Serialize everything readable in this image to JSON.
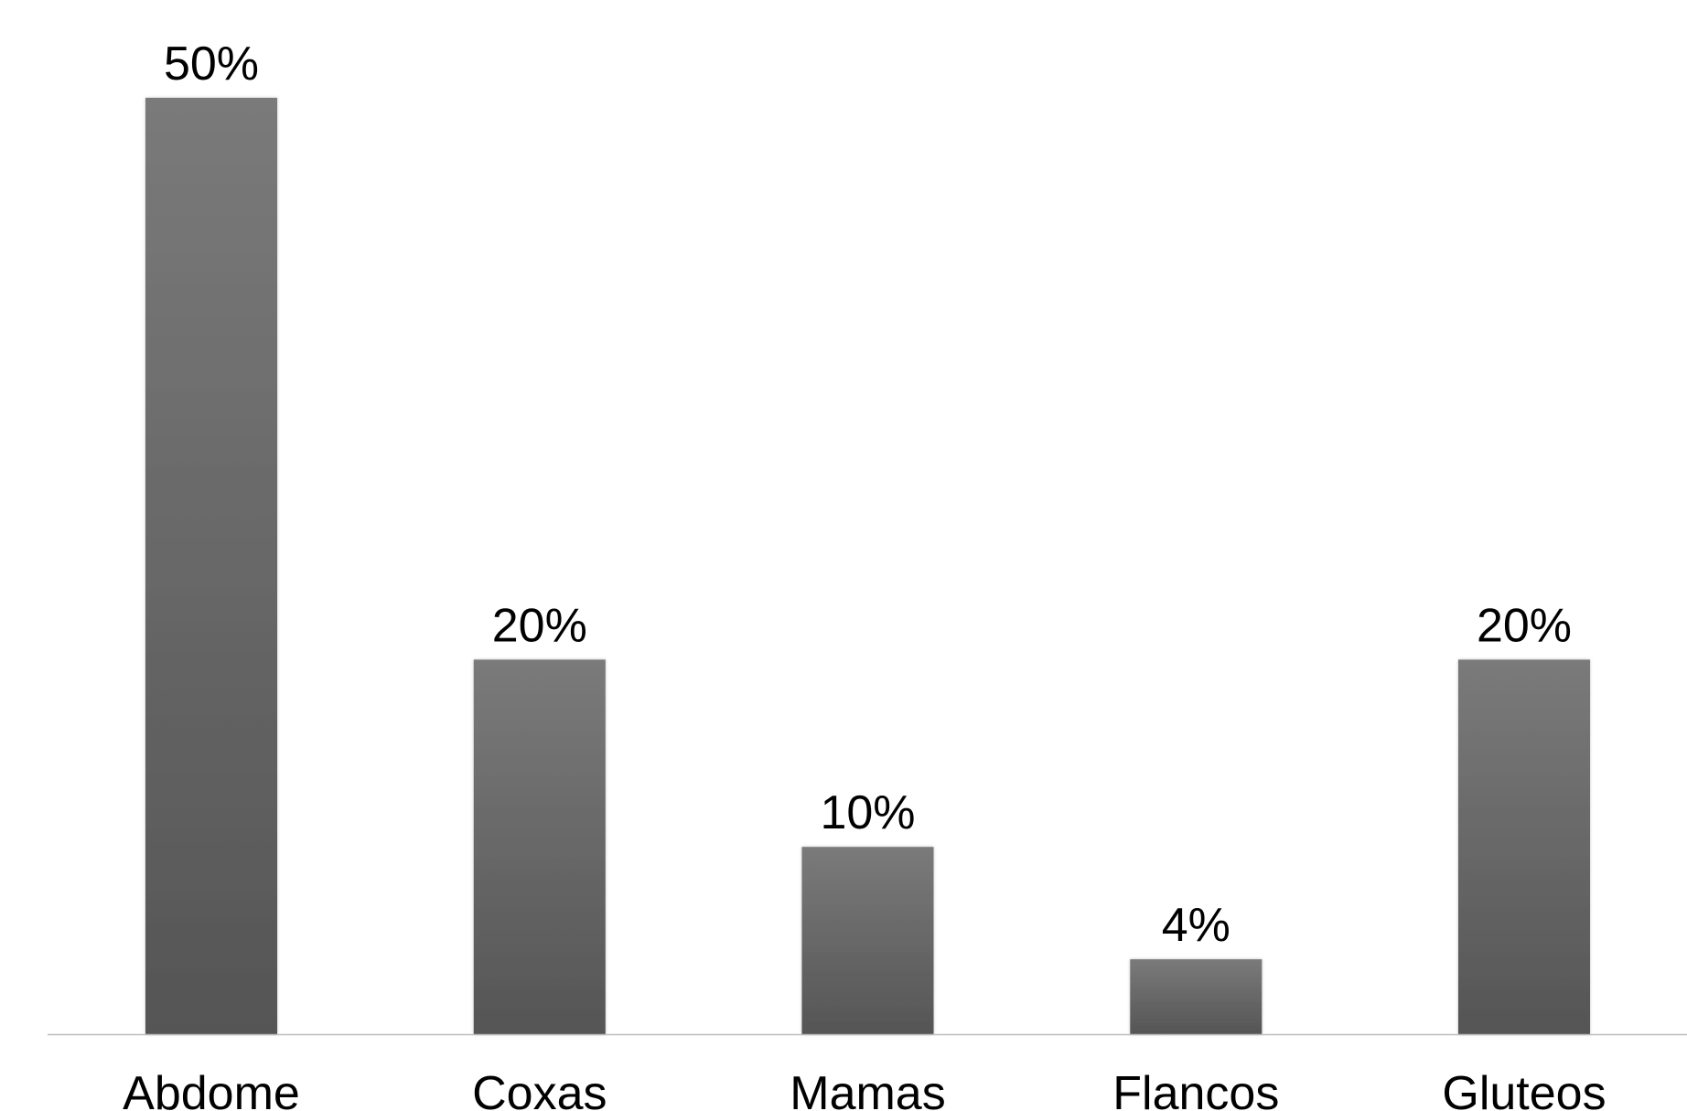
{
  "chart_data": {
    "type": "bar",
    "categories": [
      "Abdome",
      "Coxas",
      "Mamas",
      "Flancos",
      "Gluteos"
    ],
    "values": [
      50,
      20,
      10,
      4,
      20
    ],
    "data_labels": [
      "50%",
      "20%",
      "10%",
      "4%",
      "20%"
    ],
    "title": "",
    "xlabel": "",
    "ylabel": "",
    "ylim": [
      0,
      50
    ],
    "grid": false,
    "legend": "none",
    "colors": {
      "bar_top": "#7a7a7a",
      "bar_bottom": "#555555",
      "axis_line": "#bdbdbd",
      "text": "#000000"
    }
  }
}
